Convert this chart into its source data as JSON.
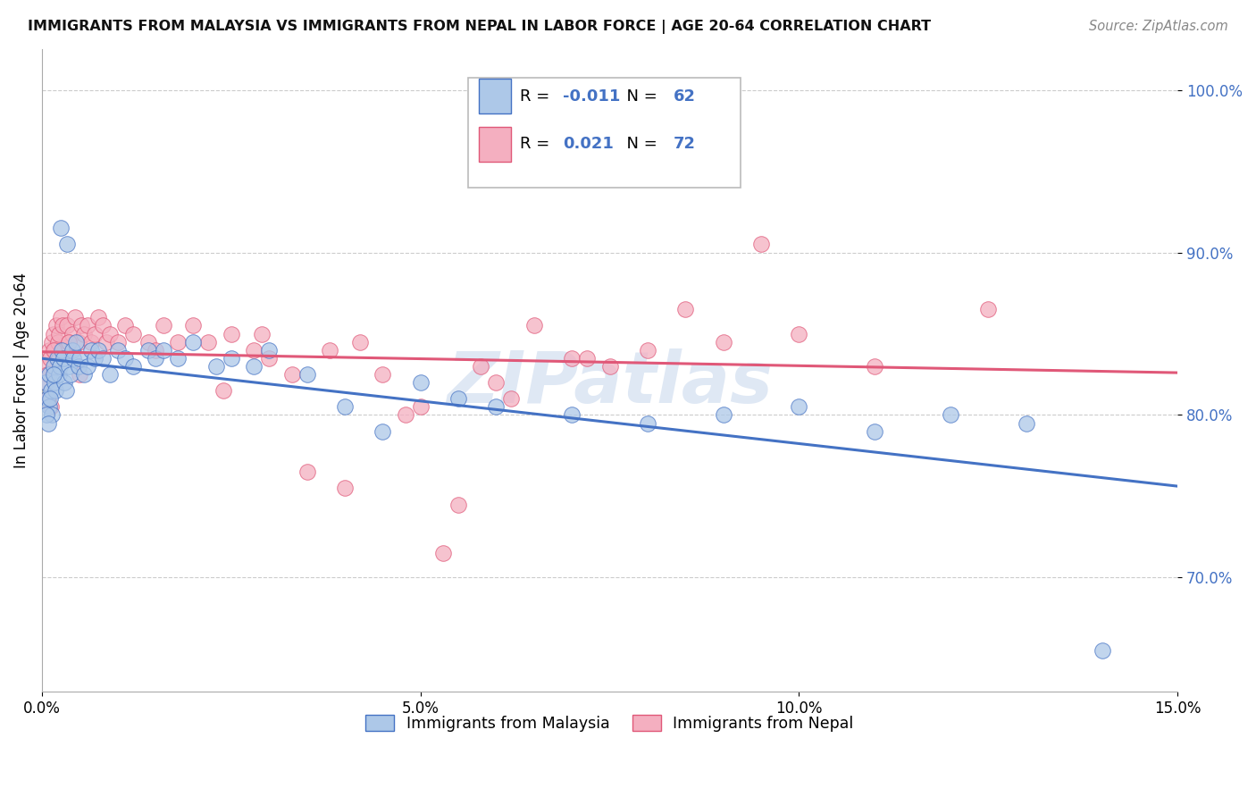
{
  "title": "IMMIGRANTS FROM MALAYSIA VS IMMIGRANTS FROM NEPAL IN LABOR FORCE | AGE 20-64 CORRELATION CHART",
  "source": "Source: ZipAtlas.com",
  "ylabel": "In Labor Force | Age 20-64",
  "xlim": [
    0.0,
    15.0
  ],
  "ylim": [
    63.0,
    102.5
  ],
  "yticks": [
    70.0,
    80.0,
    90.0,
    100.0
  ],
  "xticks": [
    0.0,
    5.0,
    10.0,
    15.0
  ],
  "xtick_labels": [
    "0.0%",
    "5.0%",
    "10.0%",
    "15.0%"
  ],
  "malaysia_color": "#adc8e8",
  "nepal_color": "#f4afc0",
  "malaysia_R": -0.011,
  "malaysia_N": 62,
  "nepal_R": 0.021,
  "nepal_N": 72,
  "legend_label_malaysia": "Immigrants from Malaysia",
  "legend_label_nepal": "Immigrants from Nepal",
  "malaysia_line_color": "#4472c4",
  "nepal_line_color": "#e05878",
  "r_n_color": "#4472c4",
  "watermark": "ZIPatlas",
  "malaysia_x": [
    0.05,
    0.07,
    0.09,
    0.1,
    0.12,
    0.13,
    0.15,
    0.17,
    0.18,
    0.2,
    0.22,
    0.24,
    0.26,
    0.28,
    0.3,
    0.32,
    0.35,
    0.38,
    0.4,
    0.42,
    0.45,
    0.48,
    0.5,
    0.55,
    0.6,
    0.65,
    0.7,
    0.75,
    0.8,
    0.9,
    1.0,
    1.1,
    1.2,
    1.4,
    1.5,
    1.6,
    1.8,
    2.0,
    2.3,
    2.5,
    2.8,
    3.0,
    3.5,
    4.0,
    4.5,
    5.0,
    5.5,
    6.0,
    7.0,
    8.0,
    9.0,
    10.0,
    11.0,
    12.0,
    13.0,
    14.0,
    0.06,
    0.08,
    0.11,
    0.16,
    0.25,
    0.33
  ],
  "malaysia_y": [
    82.0,
    81.0,
    80.5,
    82.5,
    81.5,
    80.0,
    83.0,
    82.0,
    81.5,
    83.5,
    82.5,
    83.0,
    84.0,
    83.5,
    82.0,
    81.5,
    83.0,
    82.5,
    84.0,
    83.5,
    84.5,
    83.0,
    83.5,
    82.5,
    83.0,
    84.0,
    83.5,
    84.0,
    83.5,
    82.5,
    84.0,
    83.5,
    83.0,
    84.0,
    83.5,
    84.0,
    83.5,
    84.5,
    83.0,
    83.5,
    83.0,
    84.0,
    82.5,
    80.5,
    79.0,
    82.0,
    81.0,
    80.5,
    80.0,
    79.5,
    80.0,
    80.5,
    79.0,
    80.0,
    79.5,
    65.5,
    80.0,
    79.5,
    81.0,
    82.5,
    91.5,
    90.5
  ],
  "nepal_x": [
    0.05,
    0.07,
    0.09,
    0.11,
    0.13,
    0.15,
    0.17,
    0.19,
    0.21,
    0.23,
    0.25,
    0.27,
    0.3,
    0.33,
    0.36,
    0.4,
    0.44,
    0.48,
    0.52,
    0.56,
    0.6,
    0.65,
    0.7,
    0.75,
    0.8,
    0.85,
    0.9,
    1.0,
    1.1,
    1.2,
    1.4,
    1.6,
    1.8,
    2.0,
    2.2,
    2.5,
    2.8,
    3.0,
    3.3,
    3.5,
    4.0,
    4.5,
    5.0,
    5.5,
    6.0,
    6.5,
    7.0,
    7.5,
    8.0,
    9.0,
    10.0,
    11.0,
    12.5,
    0.06,
    0.08,
    0.12,
    0.16,
    0.22,
    0.35,
    0.5,
    3.8,
    4.2,
    4.8,
    5.3,
    6.2,
    7.2,
    8.5,
    9.5,
    5.8,
    2.4,
    1.5,
    2.9
  ],
  "nepal_y": [
    83.0,
    82.5,
    84.0,
    83.5,
    84.5,
    85.0,
    84.0,
    85.5,
    84.5,
    85.0,
    86.0,
    85.5,
    84.0,
    85.5,
    84.5,
    85.0,
    86.0,
    84.5,
    85.5,
    85.0,
    85.5,
    84.5,
    85.0,
    86.0,
    85.5,
    84.5,
    85.0,
    84.5,
    85.5,
    85.0,
    84.5,
    85.5,
    84.5,
    85.5,
    84.5,
    85.0,
    84.0,
    83.5,
    82.5,
    76.5,
    75.5,
    82.5,
    80.5,
    74.5,
    82.0,
    85.5,
    83.5,
    83.0,
    84.0,
    84.5,
    85.0,
    83.0,
    86.5,
    82.0,
    81.0,
    80.5,
    84.0,
    83.5,
    84.5,
    82.5,
    84.0,
    84.5,
    80.0,
    71.5,
    81.0,
    83.5,
    86.5,
    90.5,
    83.0,
    81.5,
    84.0,
    85.0
  ]
}
